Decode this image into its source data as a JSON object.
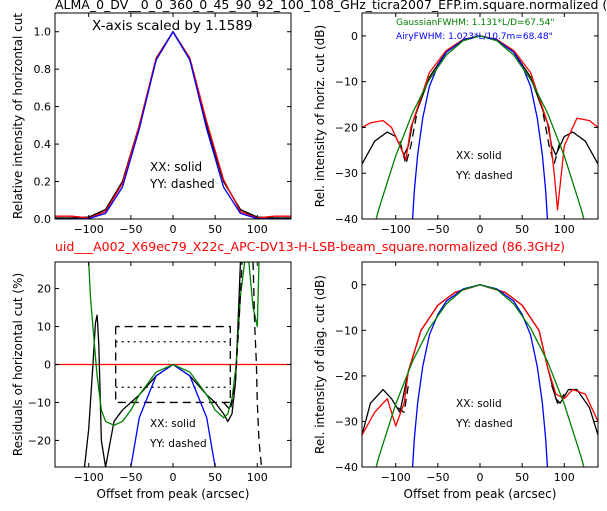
{
  "figure": {
    "top_title": "ALMA_0_DV__0_0_360_0_45_90_92_100_108_GHz_ticra2007_EFP.im.square.normalized (",
    "mid_title": "uid___A002_X69ec79_X22c_APC-DV13-H-LSB-beam_square.normalized (86.3GHz)",
    "mid_title_color": "#ff0000"
  },
  "chart_data": [
    {
      "id": "p1",
      "type": "line",
      "ylabel": "Relative intensity of horizontal cut",
      "xlim": [
        -140,
        140
      ],
      "ylim": [
        0,
        1.1
      ],
      "xticks": [
        -100,
        -50,
        0,
        50,
        100
      ],
      "xtick_labels": [
        "−100",
        "−50",
        "0",
        "50",
        "100"
      ],
      "yticks": [
        0,
        0.2,
        0.4,
        0.6,
        0.8,
        1.0
      ],
      "ytick_labels": [
        "0.0",
        "0.2",
        "0.4",
        "0.6",
        "0.8",
        "1.0"
      ],
      "annotations": [
        "X-axis scaled by 1.1589",
        "XX: solid",
        "YY: dashed"
      ],
      "series": [
        {
          "color": "#000000",
          "dash": "solid",
          "x": [
            -140,
            -120,
            -100,
            -80,
            -60,
            -40,
            -20,
            0,
            20,
            40,
            60,
            80,
            100,
            120,
            140
          ],
          "y": [
            0.005,
            0.005,
            0.01,
            0.05,
            0.2,
            0.5,
            0.85,
            1.0,
            0.85,
            0.5,
            0.2,
            0.05,
            0.01,
            0.005,
            0.005
          ]
        },
        {
          "color": "#000000",
          "dash": "dashed",
          "x": [
            -140,
            -120,
            -100,
            -80,
            -60,
            -40,
            -20,
            0,
            20,
            40,
            60,
            80,
            100,
            120,
            140
          ],
          "y": [
            0.005,
            0.005,
            0.01,
            0.05,
            0.2,
            0.5,
            0.85,
            1.0,
            0.85,
            0.5,
            0.2,
            0.05,
            0.01,
            0.005,
            0.005
          ]
        },
        {
          "color": "#ff0000",
          "dash": "solid",
          "x": [
            -140,
            -120,
            -100,
            -80,
            -60,
            -40,
            -20,
            0,
            20,
            40,
            60,
            80,
            100,
            120,
            140
          ],
          "y": [
            0.015,
            0.015,
            0.005,
            0.04,
            0.19,
            0.5,
            0.86,
            1.0,
            0.86,
            0.52,
            0.21,
            0.04,
            0.005,
            0.015,
            0.015
          ]
        },
        {
          "color": "#0000ff",
          "dash": "solid",
          "x": [
            -140,
            -120,
            -100,
            -80,
            -60,
            -40,
            -20,
            0,
            20,
            40,
            60,
            80,
            100,
            120,
            140
          ],
          "y": [
            0,
            0,
            0.002,
            0.03,
            0.17,
            0.48,
            0.85,
            1.0,
            0.85,
            0.48,
            0.17,
            0.03,
            0.002,
            0,
            0
          ]
        }
      ]
    },
    {
      "id": "p2",
      "type": "line",
      "ylabel": "Rel. intensity of horiz. cut (dB)",
      "xlim": [
        -140,
        140
      ],
      "ylim": [
        -40,
        5
      ],
      "xticks": [
        -100,
        -50,
        0,
        50,
        100
      ],
      "xtick_labels": [
        "−100",
        "−50",
        "0",
        "50",
        "100"
      ],
      "yticks": [
        -40,
        -30,
        -20,
        -10,
        0
      ],
      "ytick_labels": [
        "−40",
        "−30",
        "−20",
        "−10",
        "0"
      ],
      "annotations": [
        {
          "text": "GaussianFWHM: 1.131*L/D=67.54\"",
          "color": "#008000"
        },
        {
          "text": "AiryFWHM: 1.023*L/10.7m=68.48\"",
          "color": "#0000ff"
        },
        {
          "text": "XX: solid",
          "color": "#000000"
        },
        {
          "text": "YY: dashed",
          "color": "#000000"
        }
      ],
      "series": [
        {
          "color": "#000000",
          "dash": "solid",
          "x": [
            -140,
            -125,
            -110,
            -100,
            -90,
            -85,
            -80,
            -60,
            -40,
            -20,
            0,
            20,
            40,
            60,
            80,
            85,
            90,
            100,
            110,
            125,
            140
          ],
          "y": [
            -28,
            -23,
            -21,
            -22,
            -26,
            -24,
            -19,
            -9,
            -3.5,
            -0.8,
            0,
            -0.8,
            -3.5,
            -9,
            -19,
            -24,
            -26,
            -22,
            -21,
            -23,
            -28
          ]
        },
        {
          "color": "#000000",
          "dash": "dashed",
          "x": [
            -95,
            -88,
            -82,
            -75
          ],
          "y": [
            -23,
            -28,
            -24,
            -17
          ]
        },
        {
          "color": "#000000",
          "dash": "dashed",
          "x": [
            75,
            82,
            88,
            95
          ],
          "y": [
            -17,
            -24,
            -28,
            -23
          ]
        },
        {
          "color": "#ff0000",
          "dash": "solid",
          "x": [
            -140,
            -130,
            -115,
            -105,
            -95,
            -88,
            -82,
            -60,
            -40,
            -20,
            0,
            20,
            40,
            60,
            82,
            88,
            92,
            100,
            115,
            130,
            140
          ],
          "y": [
            -20,
            -19,
            -18.5,
            -20,
            -24,
            -27,
            -20,
            -8,
            -3.2,
            -0.8,
            0,
            -0.8,
            -3.2,
            -8,
            -20,
            -30,
            -38,
            -24,
            -18,
            -18.5,
            -20
          ]
        },
        {
          "color": "#0000ff",
          "dash": "solid",
          "x": [
            -80,
            -78,
            -74,
            -68,
            -60,
            -50,
            -40,
            -20,
            0,
            20,
            40,
            50,
            60,
            68,
            74,
            78,
            80
          ],
          "y": [
            -40,
            -34,
            -26,
            -18,
            -11,
            -6.5,
            -3.6,
            -0.9,
            0,
            -0.9,
            -3.6,
            -6.5,
            -11,
            -18,
            -26,
            -34,
            -40
          ]
        },
        {
          "color": "#008000",
          "dash": "solid",
          "x": [
            -140,
            -120,
            -100,
            -80,
            -60,
            -40,
            -20,
            0,
            20,
            40,
            60,
            80,
            100,
            120,
            140
          ],
          "y": [
            -51.4,
            -37.8,
            -26.2,
            -16.8,
            -9.5,
            -4.2,
            -1.05,
            0,
            -1.05,
            -4.2,
            -9.5,
            -16.8,
            -26.2,
            -37.8,
            -51.4
          ]
        }
      ]
    },
    {
      "id": "p3",
      "type": "line",
      "ylabel": "Residuals of horizontal cut (%)",
      "xlabel": "Offset from peak (arcsec)",
      "xlim": [
        -140,
        140
      ],
      "ylim": [
        -27,
        27
      ],
      "xticks": [
        -100,
        -50,
        0,
        50,
        100
      ],
      "xtick_labels": [
        "−100",
        "−50",
        "0",
        "50",
        "100"
      ],
      "yticks": [
        -20,
        -10,
        0,
        10,
        20
      ],
      "ytick_labels": [
        "−20",
        "−10",
        "0",
        "10",
        "20"
      ],
      "annotations": [
        "XX: solid",
        "YY: dashed"
      ],
      "series": [
        {
          "color": "#ff0000",
          "dash": "solid",
          "x": [
            -140,
            140
          ],
          "y": [
            0,
            0
          ]
        },
        {
          "color": "#000000",
          "dash": "dashed",
          "x": [
            -68,
            -68,
            68,
            68,
            -68
          ],
          "y": [
            10,
            -10,
            -10,
            10,
            10
          ]
        },
        {
          "color": "#000000",
          "dash": "dotted",
          "x": [
            -68,
            68
          ],
          "y": [
            6,
            6
          ]
        },
        {
          "color": "#000000",
          "dash": "dotted",
          "x": [
            -68,
            68
          ],
          "y": [
            -6,
            -6
          ]
        },
        {
          "color": "#000000",
          "dash": "solid",
          "x": [
            -105,
            -100,
            -95,
            -92,
            -90,
            -88,
            -85,
            -80,
            -70,
            -60,
            -50,
            -40,
            -20,
            0,
            20,
            40,
            50,
            60,
            65,
            70,
            74,
            77,
            80,
            83
          ],
          "y": [
            -27,
            -17,
            0,
            11,
            13,
            5,
            -20,
            -27,
            -15,
            -12,
            -10,
            -8,
            -3,
            0,
            -3,
            -8,
            -10,
            -13,
            -15,
            -13,
            -5,
            10,
            27,
            27
          ]
        },
        {
          "color": "#0000ff",
          "dash": "solid",
          "x": [
            -50,
            -40,
            -20,
            0,
            20,
            40,
            50
          ],
          "y": [
            -27,
            -14,
            -3,
            0,
            -3,
            -14,
            -27
          ]
        },
        {
          "color": "#008000",
          "dash": "solid",
          "x": [
            -100,
            -98,
            -95,
            -92,
            -90,
            -85,
            -80,
            -70,
            -60,
            -50,
            -40,
            -20,
            0,
            20,
            40,
            50,
            60,
            65,
            70,
            75,
            80,
            85,
            90,
            95,
            100,
            102
          ],
          "y": [
            27,
            18,
            10,
            2,
            -3,
            -12,
            -15,
            -16,
            -15,
            -12,
            -8,
            -2,
            0,
            -2,
            -8,
            -12,
            -14,
            -13,
            -9,
            0,
            18,
            27,
            27,
            15,
            10,
            27
          ]
        },
        {
          "color": "#000000",
          "dash": "dashed",
          "x": [
            60,
            68,
            74,
            78,
            82,
            84
          ],
          "y": [
            -10,
            -12,
            -5,
            10,
            27,
            27
          ]
        },
        {
          "color": "#000000",
          "dash": "dashed",
          "x": [
            95,
            97,
            99,
            100,
            102,
            105
          ],
          "y": [
            27,
            10,
            0,
            -10,
            -20,
            -27
          ]
        }
      ]
    },
    {
      "id": "p4",
      "type": "line",
      "ylabel": "Rel. intensity of diag. cut (dB)",
      "xlabel": "Offset from peak (arcsec)",
      "xlim": [
        -140,
        140
      ],
      "ylim": [
        -40,
        5
      ],
      "xticks": [
        -100,
        -50,
        0,
        50,
        100
      ],
      "xtick_labels": [
        "−100",
        "−50",
        "0",
        "50",
        "100"
      ],
      "yticks": [
        -40,
        -30,
        -20,
        -10,
        0
      ],
      "ytick_labels": [
        "−40",
        "−30",
        "−20",
        "−10",
        "0"
      ],
      "annotations": [
        "XX: solid",
        "YY: dashed"
      ],
      "series": [
        {
          "color": "#000000",
          "dash": "solid",
          "x": [
            -140,
            -130,
            -115,
            -105,
            -95,
            -85,
            -70,
            -50,
            -30,
            0,
            30,
            50,
            70,
            80,
            90,
            95,
            105,
            115,
            130,
            140
          ],
          "y": [
            -33,
            -26,
            -23,
            -25,
            -28,
            -19,
            -10,
            -4.5,
            -1.7,
            0,
            -1.7,
            -4.5,
            -10,
            -18,
            -25,
            -26,
            -23,
            -23,
            -27,
            -33
          ]
        },
        {
          "color": "#000000",
          "dash": "dashed",
          "x": [
            -97,
            -90,
            -85
          ],
          "y": [
            -27,
            -28,
            -22
          ]
        },
        {
          "color": "#000000",
          "dash": "dashed",
          "x": [
            85,
            92,
            100
          ],
          "y": [
            -22,
            -26,
            -24
          ]
        },
        {
          "color": "#ff0000",
          "dash": "solid",
          "x": [
            -140,
            -125,
            -110,
            -100,
            -90,
            -85,
            -70,
            -50,
            -30,
            0,
            30,
            50,
            70,
            80,
            90,
            100,
            110,
            125,
            140
          ],
          "y": [
            -33,
            -28,
            -25,
            -31,
            -26,
            -19,
            -10,
            -4.5,
            -1.7,
            0,
            -1.7,
            -4.5,
            -10,
            -18,
            -24,
            -25,
            -23,
            -24,
            -30
          ]
        },
        {
          "color": "#0000ff",
          "dash": "solid",
          "x": [
            -80,
            -78,
            -74,
            -68,
            -60,
            -50,
            -40,
            -20,
            0,
            20,
            40,
            50,
            60,
            68,
            74,
            78,
            80
          ],
          "y": [
            -40,
            -34,
            -26,
            -18,
            -11,
            -6.5,
            -3.6,
            -0.9,
            0,
            -0.9,
            -3.6,
            -6.5,
            -11,
            -18,
            -26,
            -34,
            -40
          ]
        },
        {
          "color": "#008000",
          "dash": "solid",
          "x": [
            -140,
            -120,
            -100,
            -80,
            -60,
            -40,
            -20,
            0,
            20,
            40,
            60,
            80,
            100,
            120,
            140
          ],
          "y": [
            -51.4,
            -37.8,
            -26.2,
            -16.8,
            -9.5,
            -4.2,
            -1.05,
            0,
            -1.05,
            -4.2,
            -9.5,
            -16.8,
            -26.2,
            -37.8,
            -51.4
          ]
        }
      ]
    }
  ]
}
